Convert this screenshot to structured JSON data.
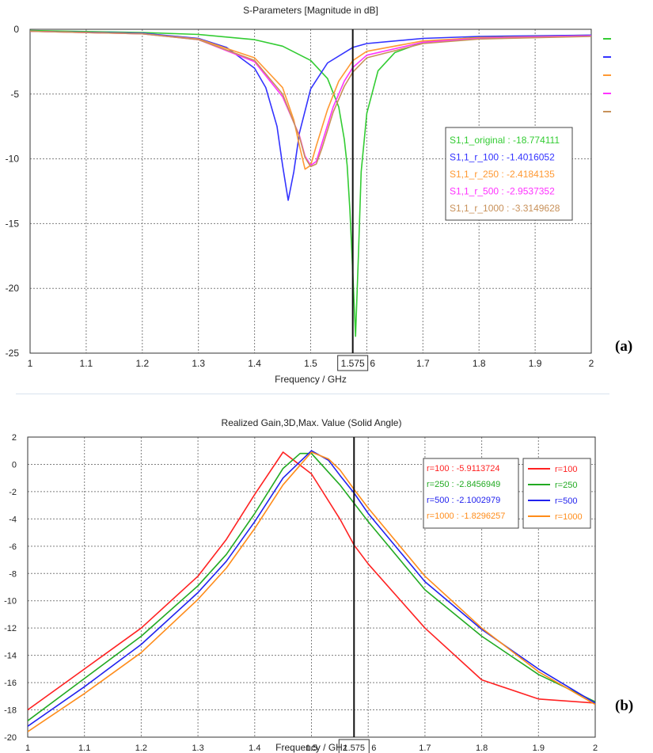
{
  "panels": {
    "a": "(a)",
    "b": "(b)"
  },
  "chart_data": [
    {
      "type": "line",
      "title": "S-Parameters [Magnitude in dB]",
      "xlabel": "Frequency / GHz",
      "ylabel": "",
      "xlim": [
        1,
        2
      ],
      "ylim": [
        -25,
        0
      ],
      "xticks": [
        "1",
        "1.1",
        "1.2",
        "1.3",
        "1.4",
        "1.5",
        "1.575",
        "1.7",
        "1.8",
        "1.9",
        "2"
      ],
      "yticks": [
        "0",
        "-5",
        "-10",
        "-15",
        "-20",
        "-25"
      ],
      "grid": true,
      "marker": {
        "x": 1.575,
        "label": "1.575"
      },
      "series": [
        {
          "name": "S1,1_original",
          "color": "#33cc33",
          "points": [
            [
              1,
              -0.1
            ],
            [
              1.2,
              -0.25
            ],
            [
              1.3,
              -0.4
            ],
            [
              1.4,
              -0.8
            ],
            [
              1.45,
              -1.3
            ],
            [
              1.5,
              -2.4
            ],
            [
              1.53,
              -3.8
            ],
            [
              1.55,
              -6.0
            ],
            [
              1.56,
              -8.5
            ],
            [
              1.565,
              -10.5
            ],
            [
              1.57,
              -14.0
            ],
            [
              1.575,
              -18.774111
            ],
            [
              1.58,
              -23.7
            ],
            [
              1.585,
              -17.5
            ],
            [
              1.59,
              -11.0
            ],
            [
              1.6,
              -6.5
            ],
            [
              1.62,
              -3.2
            ],
            [
              1.65,
              -1.8
            ],
            [
              1.7,
              -1.0
            ],
            [
              1.8,
              -0.6
            ],
            [
              2,
              -0.45
            ]
          ]
        },
        {
          "name": "S1,1_r_100",
          "color": "#3333ff",
          "points": [
            [
              1,
              -0.15
            ],
            [
              1.2,
              -0.3
            ],
            [
              1.3,
              -0.7
            ],
            [
              1.35,
              -1.4
            ],
            [
              1.4,
              -3.0
            ],
            [
              1.42,
              -4.5
            ],
            [
              1.44,
              -7.5
            ],
            [
              1.45,
              -10.5
            ],
            [
              1.46,
              -13.2
            ],
            [
              1.47,
              -11.0
            ],
            [
              1.48,
              -8.0
            ],
            [
              1.5,
              -4.6
            ],
            [
              1.53,
              -2.6
            ],
            [
              1.575,
              -1.4016052
            ],
            [
              1.6,
              -1.1
            ],
            [
              1.7,
              -0.7
            ],
            [
              1.8,
              -0.55
            ],
            [
              2,
              -0.45
            ]
          ]
        },
        {
          "name": "S1,1_r_250",
          "color": "#ff9933",
          "points": [
            [
              1,
              -0.15
            ],
            [
              1.2,
              -0.35
            ],
            [
              1.3,
              -0.75
            ],
            [
              1.4,
              -2.2
            ],
            [
              1.45,
              -4.5
            ],
            [
              1.47,
              -7.0
            ],
            [
              1.48,
              -9.0
            ],
            [
              1.49,
              -10.8
            ],
            [
              1.5,
              -10.5
            ],
            [
              1.51,
              -9.0
            ],
            [
              1.53,
              -6.2
            ],
            [
              1.55,
              -4.0
            ],
            [
              1.575,
              -2.4184135
            ],
            [
              1.6,
              -1.7
            ],
            [
              1.7,
              -0.9
            ],
            [
              1.8,
              -0.65
            ],
            [
              2,
              -0.5
            ]
          ]
        },
        {
          "name": "S1,1_r_500",
          "color": "#ff33ff",
          "points": [
            [
              1,
              -0.15
            ],
            [
              1.2,
              -0.35
            ],
            [
              1.3,
              -0.8
            ],
            [
              1.4,
              -2.5
            ],
            [
              1.45,
              -5.2
            ],
            [
              1.48,
              -8.2
            ],
            [
              1.49,
              -9.8
            ],
            [
              1.5,
              -10.5
            ],
            [
              1.51,
              -10.2
            ],
            [
              1.52,
              -8.8
            ],
            [
              1.54,
              -6.0
            ],
            [
              1.56,
              -4.0
            ],
            [
              1.575,
              -2.9537352
            ],
            [
              1.6,
              -2.0
            ],
            [
              1.7,
              -1.0
            ],
            [
              1.8,
              -0.7
            ],
            [
              2,
              -0.5
            ]
          ]
        },
        {
          "name": "S1,1_r_1000",
          "color": "#c8915a",
          "points": [
            [
              1,
              -0.15
            ],
            [
              1.2,
              -0.35
            ],
            [
              1.3,
              -0.8
            ],
            [
              1.4,
              -2.4
            ],
            [
              1.45,
              -5.0
            ],
            [
              1.48,
              -8.3
            ],
            [
              1.49,
              -9.9
            ],
            [
              1.5,
              -10.6
            ],
            [
              1.51,
              -10.4
            ],
            [
              1.52,
              -9.2
            ],
            [
              1.54,
              -6.4
            ],
            [
              1.56,
              -4.4
            ],
            [
              1.575,
              -3.3149628
            ],
            [
              1.6,
              -2.2
            ],
            [
              1.7,
              -1.1
            ],
            [
              1.8,
              -0.75
            ],
            [
              2,
              -0.55
            ]
          ]
        }
      ],
      "readout": [
        {
          "text": "S1,1_original : -18.774111",
          "color": "#33cc33"
        },
        {
          "text": "S1,1_r_100 : -1.4016052",
          "color": "#3333ff"
        },
        {
          "text": "S1,1_r_250 : -2.4184135",
          "color": "#ff9933"
        },
        {
          "text": "S1,1_r_500 : -2.9537352",
          "color": "#ff33ff"
        },
        {
          "text": "S1,1_r_1000 : -3.3149628",
          "color": "#c8915a"
        }
      ]
    },
    {
      "type": "line",
      "title": "Realized Gain,3D,Max. Value (Solid Angle)",
      "xlabel": "Frequency / GHz",
      "ylabel": "",
      "xlim": [
        1,
        2
      ],
      "ylim": [
        -20,
        2
      ],
      "xticks": [
        "1",
        "1.1",
        "1.2",
        "1.3",
        "1.4",
        "1.5",
        "1.575",
        "1.7",
        "1.8",
        "1.9",
        "2"
      ],
      "yticks": [
        "2",
        "0",
        "-2",
        "-4",
        "-6",
        "-8",
        "-10",
        "-12",
        "-14",
        "-16",
        "-18",
        "-20"
      ],
      "grid": true,
      "marker": {
        "x": 1.575,
        "label": "1.575"
      },
      "series": [
        {
          "name": "r=100",
          "color": "#ff2222",
          "points": [
            [
              1,
              -18.0
            ],
            [
              1.1,
              -15.0
            ],
            [
              1.2,
              -12.0
            ],
            [
              1.3,
              -8.2
            ],
            [
              1.35,
              -5.5
            ],
            [
              1.4,
              -2.2
            ],
            [
              1.45,
              0.9
            ],
            [
              1.5,
              -0.7
            ],
            [
              1.55,
              -4.0
            ],
            [
              1.575,
              -5.9113724
            ],
            [
              1.6,
              -7.3
            ],
            [
              1.7,
              -12.0
            ],
            [
              1.8,
              -15.8
            ],
            [
              1.9,
              -17.2
            ],
            [
              2,
              -17.5
            ]
          ]
        },
        {
          "name": "r=250",
          "color": "#22aa22",
          "points": [
            [
              1,
              -18.8
            ],
            [
              1.1,
              -15.7
            ],
            [
              1.2,
              -12.6
            ],
            [
              1.3,
              -8.9
            ],
            [
              1.35,
              -6.6
            ],
            [
              1.4,
              -3.6
            ],
            [
              1.45,
              -0.3
            ],
            [
              1.48,
              0.8
            ],
            [
              1.5,
              0.8
            ],
            [
              1.55,
              -1.5
            ],
            [
              1.575,
              -2.8456949
            ],
            [
              1.6,
              -4.2
            ],
            [
              1.7,
              -9.2
            ],
            [
              1.8,
              -12.6
            ],
            [
              1.9,
              -15.4
            ],
            [
              2,
              -17.4
            ]
          ]
        },
        {
          "name": "r=500",
          "color": "#2222ee",
          "points": [
            [
              1,
              -19.2
            ],
            [
              1.1,
              -16.3
            ],
            [
              1.2,
              -13.2
            ],
            [
              1.3,
              -9.4
            ],
            [
              1.35,
              -7.1
            ],
            [
              1.4,
              -4.2
            ],
            [
              1.45,
              -1.0
            ],
            [
              1.5,
              1.0
            ],
            [
              1.53,
              0.3
            ],
            [
              1.55,
              -0.8
            ],
            [
              1.575,
              -2.1002979
            ],
            [
              1.6,
              -3.6
            ],
            [
              1.7,
              -8.6
            ],
            [
              1.8,
              -12.1
            ],
            [
              1.9,
              -15.0
            ],
            [
              2,
              -17.5
            ]
          ]
        },
        {
          "name": "r=1000",
          "color": "#ff8c1a",
          "points": [
            [
              1,
              -19.6
            ],
            [
              1.1,
              -16.8
            ],
            [
              1.2,
              -13.8
            ],
            [
              1.3,
              -9.9
            ],
            [
              1.35,
              -7.6
            ],
            [
              1.4,
              -4.7
            ],
            [
              1.45,
              -1.5
            ],
            [
              1.5,
              0.9
            ],
            [
              1.53,
              0.4
            ],
            [
              1.55,
              -0.4
            ],
            [
              1.575,
              -1.8296257
            ],
            [
              1.6,
              -3.2
            ],
            [
              1.7,
              -8.2
            ],
            [
              1.8,
              -12.0
            ],
            [
              1.9,
              -15.2
            ],
            [
              2,
              -17.6
            ]
          ]
        }
      ],
      "readout": [
        {
          "text": "r=100 : -5.9113724",
          "color": "#ff2222"
        },
        {
          "text": "r=250 : -2.8456949",
          "color": "#22aa22"
        },
        {
          "text": "r=500 : -2.1002979",
          "color": "#2222ee"
        },
        {
          "text": "r=1000 : -1.8296257",
          "color": "#ff8c1a"
        }
      ],
      "legend": [
        {
          "name": "r=100",
          "color": "#ff2222"
        },
        {
          "name": "r=250",
          "color": "#22aa22"
        },
        {
          "name": "r=500",
          "color": "#2222ee"
        },
        {
          "name": "r=1000",
          "color": "#ff8c1a"
        }
      ]
    }
  ]
}
